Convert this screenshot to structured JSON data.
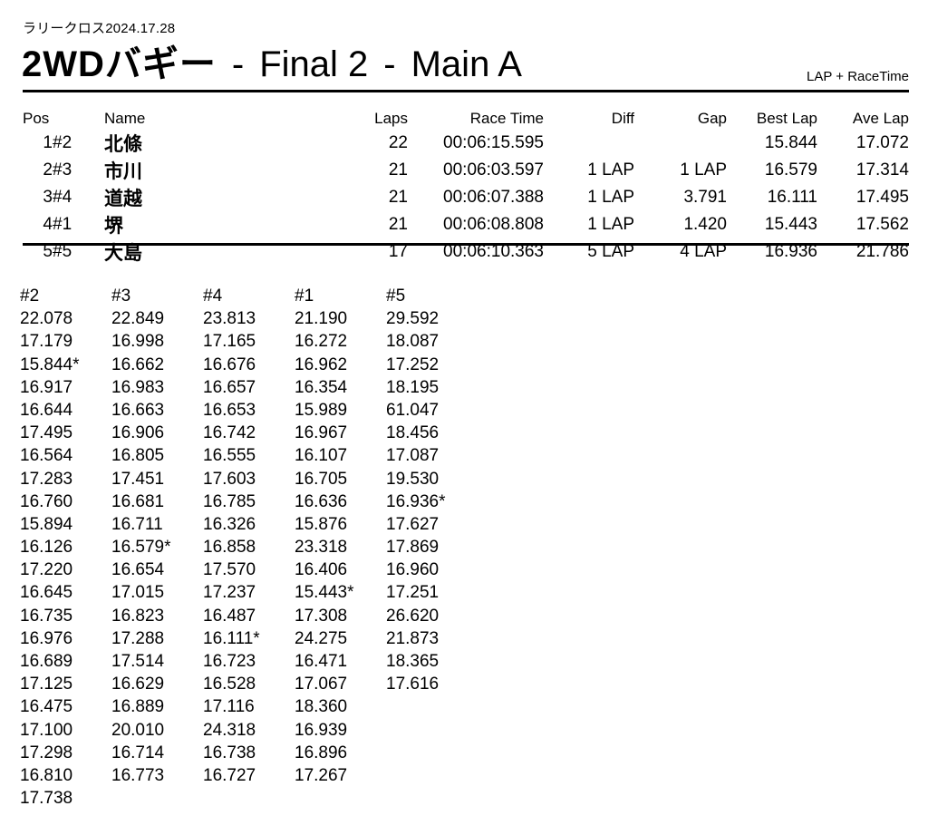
{
  "colors": {
    "background": "#ffffff",
    "text": "#000000",
    "rule": "#000000"
  },
  "header": {
    "event_line": "ラリークロス2024.17.28",
    "title": {
      "class_name": "2WDバギー",
      "separator": "-",
      "race": "Final 2",
      "heat": "Main A"
    },
    "format_label": "LAP + RaceTime"
  },
  "results": {
    "columns": [
      "Pos",
      "Name",
      "Laps",
      "Race Time",
      "Diff",
      "Gap",
      "Best Lap",
      "Ave Lap"
    ],
    "rows": [
      {
        "pos": "1",
        "car": "#2",
        "name": "北條",
        "laps": "22",
        "race_time": "00:06:15.595",
        "diff": "",
        "gap": "",
        "best_lap": "15.844",
        "ave_lap": "17.072"
      },
      {
        "pos": "2",
        "car": "#3",
        "name": "市川",
        "laps": "21",
        "race_time": "00:06:03.597",
        "diff": "1 LAP",
        "gap": "1 LAP",
        "best_lap": "16.579",
        "ave_lap": "17.314"
      },
      {
        "pos": "3",
        "car": "#4",
        "name": "道越",
        "laps": "21",
        "race_time": "00:06:07.388",
        "diff": "1 LAP",
        "gap": "3.791",
        "best_lap": "16.111",
        "ave_lap": "17.495"
      },
      {
        "pos": "4",
        "car": "#1",
        "name": "堺",
        "laps": "21",
        "race_time": "00:06:08.808",
        "diff": "1 LAP",
        "gap": "1.420",
        "best_lap": "15.443",
        "ave_lap": "17.562"
      },
      {
        "pos": "5",
        "car": "#5",
        "name": "大島",
        "laps": "17",
        "race_time": "00:06:10.363",
        "diff": "5 LAP",
        "gap": "4 LAP",
        "best_lap": "16.936",
        "ave_lap": "21.786"
      }
    ]
  },
  "lap_chart": {
    "best_lap_marker": "*",
    "series": [
      {
        "car": "#2",
        "laps": [
          "22.078",
          "17.179",
          "15.844*",
          "16.917",
          "16.644",
          "17.495",
          "16.564",
          "17.283",
          "16.760",
          "15.894",
          "16.126",
          "17.220",
          "16.645",
          "16.735",
          "16.976",
          "16.689",
          "17.125",
          "16.475",
          "17.100",
          "17.298",
          "16.810",
          "17.738"
        ]
      },
      {
        "car": "#3",
        "laps": [
          "22.849",
          "16.998",
          "16.662",
          "16.983",
          "16.663",
          "16.906",
          "16.805",
          "17.451",
          "16.681",
          "16.711",
          "16.579*",
          "16.654",
          "17.015",
          "16.823",
          "17.288",
          "17.514",
          "16.629",
          "16.889",
          "20.010",
          "16.714",
          "16.773"
        ]
      },
      {
        "car": "#4",
        "laps": [
          "23.813",
          "17.165",
          "16.676",
          "16.657",
          "16.653",
          "16.742",
          "16.555",
          "17.603",
          "16.785",
          "16.326",
          "16.858",
          "17.570",
          "17.237",
          "16.487",
          "16.111*",
          "16.723",
          "16.528",
          "17.116",
          "24.318",
          "16.738",
          "16.727"
        ]
      },
      {
        "car": "#1",
        "laps": [
          "21.190",
          "16.272",
          "16.962",
          "16.354",
          "15.989",
          "16.967",
          "16.107",
          "16.705",
          "16.636",
          "15.876",
          "23.318",
          "16.406",
          "15.443*",
          "17.308",
          "24.275",
          "16.471",
          "17.067",
          "18.360",
          "16.939",
          "16.896",
          "17.267"
        ]
      },
      {
        "car": "#5",
        "laps": [
          "29.592",
          "18.087",
          "17.252",
          "18.195",
          "61.047",
          "18.456",
          "17.087",
          "19.530",
          "16.936*",
          "17.627",
          "17.869",
          "16.960",
          "17.251",
          "26.620",
          "21.873",
          "18.365",
          "17.616"
        ]
      }
    ]
  }
}
